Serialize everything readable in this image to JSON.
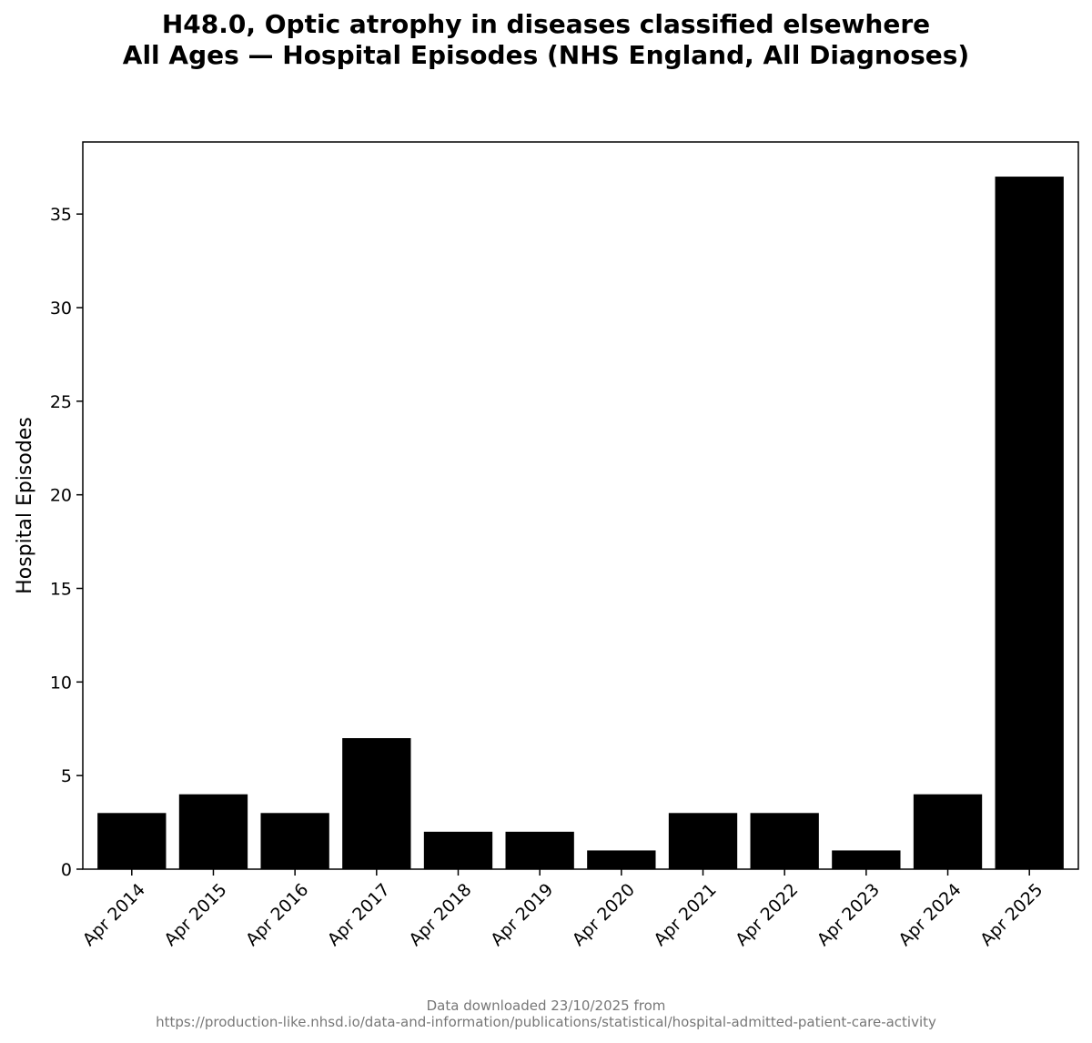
{
  "chart_data": {
    "type": "bar",
    "title_lines": [
      "H48.0, Optic atrophy in diseases classified elsewhere",
      "All Ages — Hospital Episodes (NHS England, All Diagnoses)"
    ],
    "xlabel": "",
    "ylabel": "Hospital Episodes",
    "categories": [
      "Apr 2014",
      "Apr 2015",
      "Apr 2016",
      "Apr 2017",
      "Apr 2018",
      "Apr 2019",
      "Apr 2020",
      "Apr 2021",
      "Apr 2022",
      "Apr 2023",
      "Apr 2024",
      "Apr 2025"
    ],
    "values": [
      3,
      4,
      3,
      7,
      2,
      2,
      1,
      3,
      3,
      1,
      4,
      37
    ],
    "ylim": [
      0,
      38.85
    ],
    "yticks": [
      0,
      5,
      10,
      15,
      20,
      25,
      30,
      35
    ],
    "bar_color": "#000000",
    "grid": false,
    "legend": "none"
  },
  "footer": {
    "line1": "Data downloaded 23/10/2025 from",
    "line2": "https://production-like.nhsd.io/data-and-information/publications/statistical/hospital-admitted-patient-care-activity"
  }
}
